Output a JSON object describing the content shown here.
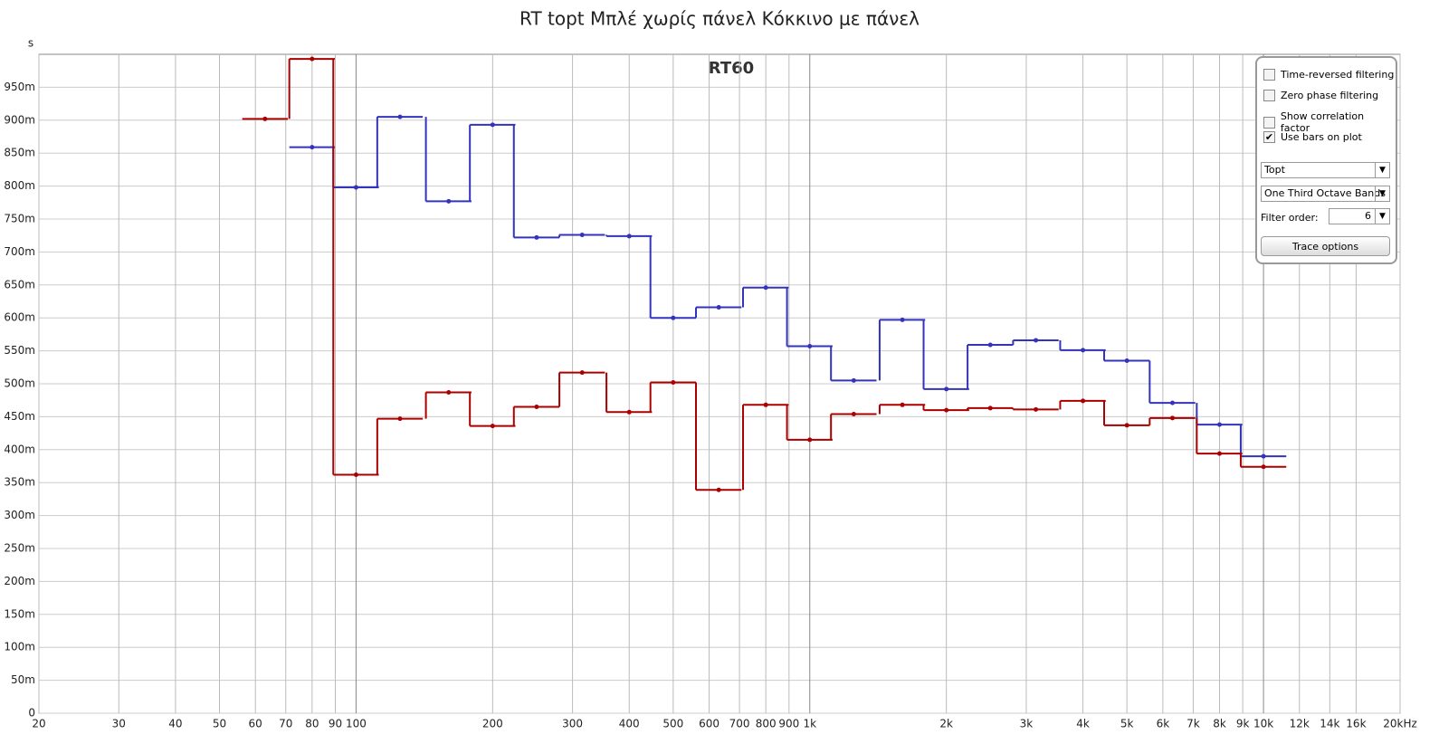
{
  "chart_data": {
    "type": "step",
    "title": "RT topt Μπλέ χωρίς πάνελ Κόκκινο με πάνελ",
    "plot_label": "RT60",
    "y_unit": "s",
    "x": [
      63,
      80,
      100,
      125,
      160,
      200,
      250,
      315,
      400,
      500,
      630,
      800,
      1000,
      1250,
      1600,
      2000,
      2500,
      3150,
      4000,
      5000,
      6300,
      8000,
      10000
    ],
    "series": [
      {
        "name": "Μπλέ χωρίς πάνελ",
        "color": "#3333bb",
        "values": [
          null,
          0.859,
          0.798,
          0.905,
          0.777,
          0.893,
          0.722,
          0.726,
          0.724,
          0.6,
          0.616,
          0.646,
          0.557,
          0.505,
          0.597,
          0.492,
          0.559,
          0.566,
          0.551,
          0.535,
          0.471,
          0.438,
          0.39
        ]
      },
      {
        "name": "Κόκκινο με πάνελ",
        "color": "#aa0000",
        "values": [
          0.902,
          0.993,
          0.362,
          0.447,
          0.487,
          0.436,
          0.465,
          0.517,
          0.457,
          0.502,
          0.339,
          0.468,
          0.415,
          0.454,
          0.468,
          0.46,
          0.463,
          0.461,
          0.474,
          0.437,
          0.448,
          0.394,
          0.374
        ]
      }
    ],
    "xlog": true,
    "xlim": [
      20,
      20000
    ],
    "xticks": [
      20,
      30,
      40,
      50,
      60,
      70,
      80,
      90,
      100,
      200,
      300,
      400,
      500,
      600,
      700,
      800,
      900,
      {
        "value": 1000,
        "label": "1k"
      },
      {
        "value": 2000,
        "label": "2k"
      },
      {
        "value": 3000,
        "label": "3k"
      },
      {
        "value": 4000,
        "label": "4k"
      },
      {
        "value": 5000,
        "label": "5k"
      },
      {
        "value": 6000,
        "label": "6k"
      },
      {
        "value": 7000,
        "label": "7k"
      },
      {
        "value": 8000,
        "label": "8k"
      },
      {
        "value": 9000,
        "label": "9k"
      },
      {
        "value": 10000,
        "label": "10k"
      },
      {
        "value": 12000,
        "label": "12k"
      },
      {
        "value": 14000,
        "label": "14k"
      },
      {
        "value": 16000,
        "label": "16k"
      },
      {
        "value": 20000,
        "label": "20kHz"
      }
    ],
    "ylim": [
      0,
      1
    ],
    "yticks": [
      0,
      {
        "value": 0.05,
        "label": "50m"
      },
      {
        "value": 0.1,
        "label": "100m"
      },
      {
        "value": 0.15,
        "label": "150m"
      },
      {
        "value": 0.2,
        "label": "200m"
      },
      {
        "value": 0.25,
        "label": "250m"
      },
      {
        "value": 0.3,
        "label": "300m"
      },
      {
        "value": 0.35,
        "label": "350m"
      },
      {
        "value": 0.4,
        "label": "400m"
      },
      {
        "value": 0.45,
        "label": "450m"
      },
      {
        "value": 0.5,
        "label": "500m"
      },
      {
        "value": 0.55,
        "label": "550m"
      },
      {
        "value": 0.6,
        "label": "600m"
      },
      {
        "value": 0.65,
        "label": "650m"
      },
      {
        "value": 0.7,
        "label": "700m"
      },
      {
        "value": 0.75,
        "label": "750m"
      },
      {
        "value": 0.8,
        "label": "800m"
      },
      {
        "value": 0.85,
        "label": "850m"
      },
      {
        "value": 0.9,
        "label": "900m"
      },
      {
        "value": 0.95,
        "label": "950m"
      }
    ],
    "grid": true
  },
  "controls": {
    "checkboxes": [
      {
        "label": "Time-reversed filtering",
        "checked": false
      },
      {
        "label": "Zero phase filtering",
        "checked": false
      },
      {
        "label": "Show correlation factor",
        "checked": false
      },
      {
        "label": "Use bars on plot",
        "checked": true
      }
    ],
    "dropdowns": [
      "Topt",
      "One Third Octave Bands"
    ],
    "filter_order_label": "Filter order:",
    "filter_order": "6",
    "button": "Trace options"
  }
}
